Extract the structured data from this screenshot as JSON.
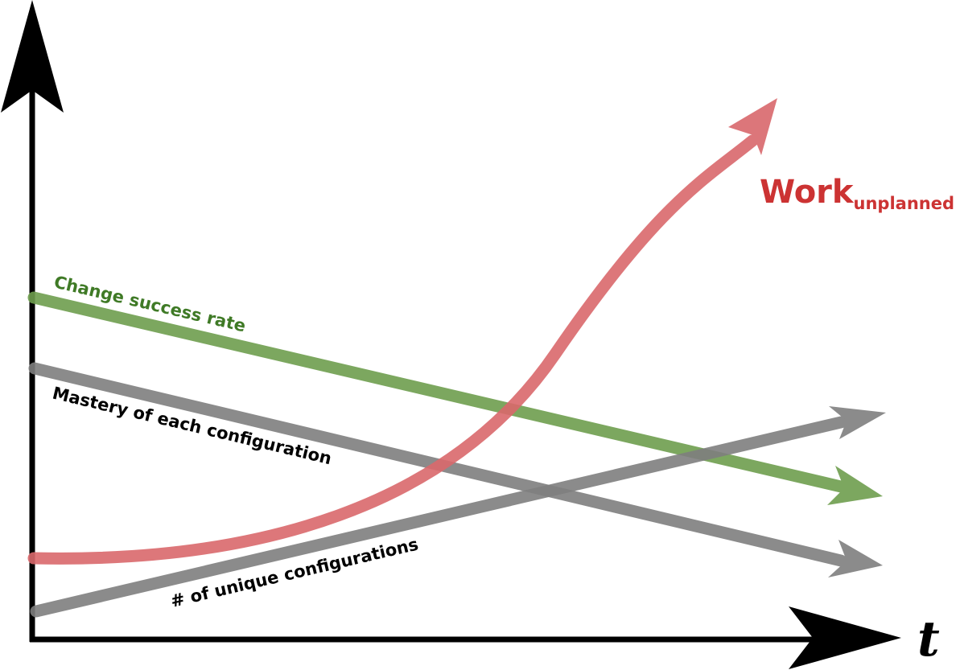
{
  "axes": {
    "x_label": "t"
  },
  "series": {
    "work": {
      "label": "Work",
      "subscript": "unplanned",
      "color": "#d9686c"
    },
    "change_success_rate": {
      "label": "Change success rate",
      "color": "#6e9e4e",
      "label_color": "#3f7a26"
    },
    "mastery": {
      "label": "Mastery of each configuration",
      "color": "#7f7f7f",
      "label_color": "#000000"
    },
    "unique_configs": {
      "label": "# of unique configurations",
      "color": "#7f7f7f",
      "label_color": "#000000"
    }
  },
  "colors": {
    "axis": "#000000",
    "work_label": "#cc3333"
  }
}
